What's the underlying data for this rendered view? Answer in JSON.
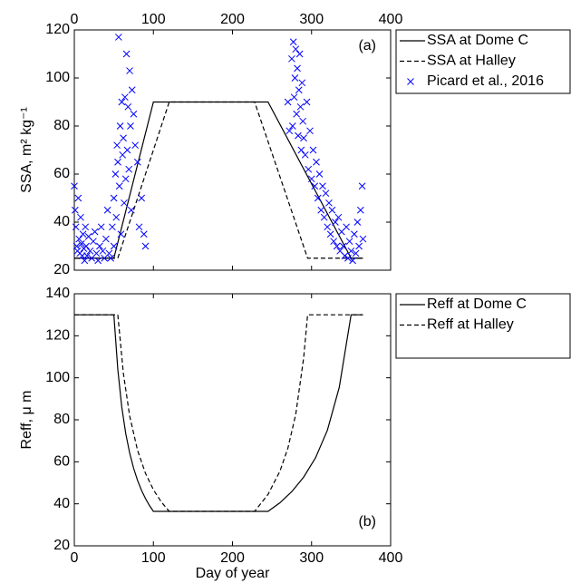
{
  "chart_data": [
    {
      "type": "line",
      "ylabel": "SSA, m² kg⁻¹",
      "annotation": "(a)",
      "xlim": [
        0,
        400
      ],
      "xticks": [
        0,
        100,
        200,
        300,
        400
      ],
      "xaxis_position": "top",
      "ylim": [
        20,
        120
      ],
      "yticks": [
        20,
        40,
        60,
        80,
        100,
        120
      ],
      "grid": false,
      "legend": "outside right",
      "series": [
        {
          "name": "SSA at Dome C",
          "color": "#000000",
          "style": "solid",
          "x": [
            0,
            50,
            100,
            245,
            350,
            365
          ],
          "values": [
            25,
            25,
            90,
            90,
            25,
            25
          ]
        },
        {
          "name": "SSA at Halley",
          "color": "#000000",
          "style": "dashed",
          "x": [
            0,
            55,
            120,
            228,
            295,
            365
          ],
          "values": [
            25,
            25,
            90,
            90,
            25,
            25
          ]
        },
        {
          "name": "Picard et al., 2016",
          "color": "#0000ff",
          "style": "x",
          "x": [
            0,
            1,
            2,
            3,
            4,
            5,
            6,
            7,
            8,
            9,
            10,
            11,
            12,
            13,
            14,
            15,
            16,
            18,
            20,
            22,
            24,
            26,
            28,
            30,
            32,
            34,
            36,
            38,
            40,
            42,
            44,
            46,
            48,
            50,
            50,
            52,
            53,
            54,
            55,
            56,
            57,
            58,
            59,
            60,
            61,
            62,
            63,
            64,
            65,
            66,
            67,
            68,
            69,
            70,
            71,
            72,
            73,
            75,
            77,
            80,
            82,
            85,
            88,
            90,
            270,
            272,
            275,
            276,
            277,
            278,
            279,
            280,
            281,
            282,
            283,
            284,
            285,
            286,
            287,
            288,
            289,
            290,
            292,
            294,
            296,
            298,
            300,
            302,
            304,
            306,
            308,
            310,
            312,
            314,
            316,
            318,
            320,
            322,
            324,
            326,
            328,
            330,
            332,
            334,
            336,
            338,
            340,
            342,
            344,
            346,
            348,
            350,
            352,
            354,
            356,
            358,
            360,
            362,
            364,
            365
          ],
          "values": [
            55,
            45,
            38,
            30,
            28,
            50,
            33,
            27,
            42,
            31,
            26,
            35,
            29,
            24,
            38,
            30,
            26,
            34,
            28,
            25,
            32,
            36,
            27,
            24,
            30,
            38,
            28,
            25,
            33,
            45,
            27,
            25,
            38,
            30,
            50,
            60,
            42,
            72,
            65,
            117,
            55,
            80,
            35,
            90,
            68,
            75,
            48,
            92,
            58,
            110,
            70,
            88,
            62,
            103,
            80,
            45,
            95,
            85,
            72,
            65,
            38,
            50,
            35,
            30,
            90,
            78,
            108,
            80,
            115,
            92,
            100,
            112,
            85,
            104,
            76,
            95,
            110,
            88,
            70,
            98,
            82,
            75,
            68,
            90,
            62,
            78,
            58,
            70,
            55,
            65,
            50,
            60,
            45,
            55,
            42,
            52,
            38,
            48,
            35,
            45,
            32,
            40,
            30,
            42,
            28,
            36,
            30,
            26,
            38,
            25,
            32,
            28,
            24,
            35,
            27,
            40,
            30,
            45,
            55,
            33
          ]
        }
      ]
    },
    {
      "type": "line",
      "xlabel": "Day of year",
      "ylabel": "Reff, μ m",
      "annotation": "(b)",
      "xlim": [
        0,
        400
      ],
      "xticks": [
        0,
        100,
        200,
        300,
        400
      ],
      "xaxis_position": "bottom",
      "ylim": [
        20,
        140
      ],
      "yticks": [
        20,
        40,
        60,
        80,
        100,
        120,
        140
      ],
      "grid": false,
      "legend": "outside right",
      "series": [
        {
          "name": "Reff at Dome C",
          "color": "#000000",
          "style": "solid",
          "x": [
            0,
            50,
            55,
            60,
            65,
            70,
            75,
            80,
            85,
            90,
            95,
            100,
            245,
            260,
            275,
            290,
            305,
            320,
            335,
            350,
            365
          ],
          "values": [
            130,
            130,
            103.9,
            86.1,
            73.5,
            64.2,
            56.9,
            51.1,
            46.4,
            42.5,
            39.2,
            36.4,
            36.4,
            40.5,
            45.8,
            52.7,
            61.9,
            75.0,
            95.4,
            130,
            130
          ]
        },
        {
          "name": "Reff at Halley",
          "color": "#000000",
          "style": "dashed",
          "x": [
            0,
            55,
            62,
            70,
            80,
            90,
            100,
            110,
            120,
            228,
            245,
            260,
            270,
            280,
            290,
            295,
            365
          ],
          "values": [
            130,
            130,
            102.2,
            81.8,
            65.4,
            54.5,
            46.7,
            40.9,
            36.4,
            36.4,
            44.5,
            55.5,
            66.4,
            82.6,
            109.4,
            130,
            130
          ]
        }
      ]
    }
  ]
}
